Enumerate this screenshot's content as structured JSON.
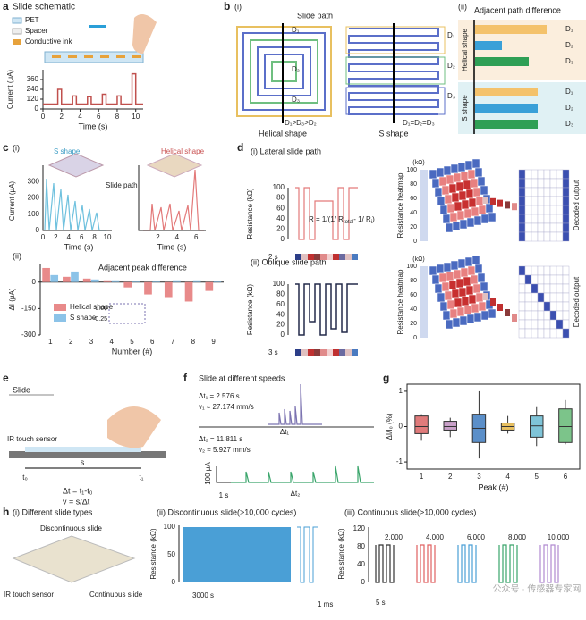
{
  "chart_data": [
    {
      "type": "line",
      "ylabel": "Current (μA)",
      "xlabel": "Time (s)",
      "xlim": [
        0,
        10.8
      ],
      "ylim": [
        0,
        480
      ],
      "xticks": [
        0,
        2,
        4,
        6,
        8,
        10
      ],
      "yticks": [
        0,
        120,
        240,
        360
      ],
      "color": "#c0504d",
      "x": [
        0,
        1.6,
        1.6,
        2.0,
        2.0,
        3.2,
        3.2,
        3.6,
        3.6,
        4.8,
        4.8,
        5.2,
        5.2,
        6.4,
        6.4,
        6.8,
        6.8,
        8.0,
        8.0,
        8.4,
        8.4,
        9.6,
        9.6,
        10.0,
        10.0,
        10.8
      ],
      "values": [
        60,
        60,
        240,
        240,
        60,
        60,
        160,
        160,
        60,
        60,
        150,
        150,
        60,
        60,
        180,
        180,
        60,
        60,
        160,
        160,
        60,
        60,
        430,
        430,
        60,
        60
      ]
    },
    {
      "type": "bar",
      "title": "Adjacent peak difference",
      "ylabel": "ΔI (μA)",
      "xlabel": "Number (#)",
      "ylim": [
        -300,
        100
      ],
      "yticks": [
        0,
        -150,
        -300
      ],
      "categories": [
        "1",
        "2",
        "3",
        "4",
        "5",
        "6",
        "7",
        "8",
        "9"
      ],
      "series": [
        {
          "name": "Helical shape",
          "color": "#e88a8a",
          "values": [
            80,
            30,
            20,
            10,
            -30,
            -70,
            -90,
            -110,
            -50
          ]
        },
        {
          "name": "S shape",
          "color": "#8cc3e8",
          "values": [
            40,
            60,
            15,
            10,
            5,
            5,
            10,
            10,
            5
          ]
        }
      ]
    },
    {
      "type": "box",
      "ylabel": "ΔI/I₀ (%)",
      "xlabel": "Peak (#)",
      "ylim": [
        -1.2,
        1.2
      ],
      "yticks": [
        -1,
        0,
        1
      ],
      "categories": [
        "1",
        "2",
        "3",
        "4",
        "5",
        "6"
      ],
      "colors": [
        "#e07b7b",
        "#c9a0c9",
        "#5b8fc9",
        "#e8c060",
        "#7fc4d8",
        "#7cc48a"
      ],
      "min": [
        -0.4,
        -0.3,
        -0.9,
        -0.2,
        -0.55,
        -0.5
      ],
      "q1": [
        -0.2,
        -0.1,
        -0.45,
        -0.1,
        -0.3,
        -0.45
      ],
      "median": [
        0,
        0,
        -0.05,
        0,
        0.02,
        0
      ],
      "q3": [
        0.3,
        0.15,
        0.35,
        0.1,
        0.3,
        0.5
      ],
      "max": [
        0.35,
        0.25,
        1.0,
        0.3,
        0.55,
        0.75
      ]
    }
  ],
  "panels": {
    "a": {
      "label": "a",
      "title": "Slide schematic",
      "legend": [
        "PET",
        "Spacer",
        "Conductive ink"
      ]
    },
    "b": {
      "label": "b",
      "sub1": "(i)",
      "slide_path": "Slide path",
      "d": [
        "D₁",
        "D₂",
        "D₃"
      ],
      "helical": "Helical shape",
      "helical_rel": "D₁>D₃>D₂",
      "s": "S shape",
      "s_rel": "D₁=D₂=D₃",
      "sub2": "(ii)",
      "adj": "Adjacent path difference"
    },
    "c": {
      "label": "c",
      "sub1": "(i)",
      "legend": [
        "S shape",
        "Helical shape"
      ],
      "slide_path": "Slide path",
      "ylabel": "Current (μA)",
      "xlabel": "Time (s)",
      "yticks": [
        0,
        100,
        200,
        300
      ],
      "xticks1": [
        0,
        2,
        4,
        6,
        8,
        10
      ],
      "xticks2": [
        2,
        4,
        6
      ],
      "sub2": "(ii)",
      "inset_ticks": [
        "0.00",
        "-0.25"
      ]
    },
    "d": {
      "label": "d",
      "sub1": "(i) Lateral slide path",
      "sub2": "(ii) Oblique slide path",
      "ylabel": "Resistance (kΩ)",
      "yticks": [
        0,
        20,
        40,
        60,
        80,
        100
      ],
      "scale1": "2 s",
      "scale2": "3 s",
      "formula": [
        "R = 1/(1/ R",
        "total",
        "- 1/ R",
        "i",
        ")"
      ],
      "unit": "(kΩ)",
      "heatmap": "Resistance heatmap",
      "decoded": "Decoded output",
      "cticks": [
        100,
        80,
        60,
        40,
        20,
        0
      ]
    },
    "e": {
      "label": "e",
      "slide": "Slide",
      "sensor": "IR touch sensor",
      "s": "s",
      "t0": "t₀",
      "t1": "t₁",
      "eq1": "Δt = t₁-t₀",
      "eq2": "v  =  s/Δt"
    },
    "f": {
      "label": "f",
      "title": "Slide at different speeds",
      "dt1": "Δt₁ = 2.576 s",
      "v1": "v₁ ≈ 27.174 mm/s",
      "dt2": "Δt₂ = 11.811 s",
      "v2": "v₂ ≈ 5.927 mm/s",
      "dt1m": "Δt₁",
      "dt2m": "Δt₂",
      "scale_y": "100 μA",
      "scale_x": "1 s"
    },
    "g": {
      "label": "g"
    },
    "h": {
      "label": "h",
      "sub1": "(i) Different slide types",
      "disc": "Discontinuous slide",
      "sensor": "IR touch sensor",
      "cont": "Continuous slide",
      "sub2": "(ii) Discontinuous slide(>10,000 cycles)",
      "ylabel": "Resistance (kΩ)",
      "yticks2": [
        0,
        50,
        100
      ],
      "sx2": "3000 s",
      "sx3": "1 ms",
      "sub3": "(iii) Continuous slide(>10,000 cycles)",
      "yticks3": [
        0,
        40,
        80,
        120
      ],
      "cycles": [
        "2,000",
        "4,000",
        "6,000",
        "8,000",
        "10,000"
      ],
      "sx": "5 s"
    },
    "watermark": "公众号 · 传感器专家网"
  }
}
